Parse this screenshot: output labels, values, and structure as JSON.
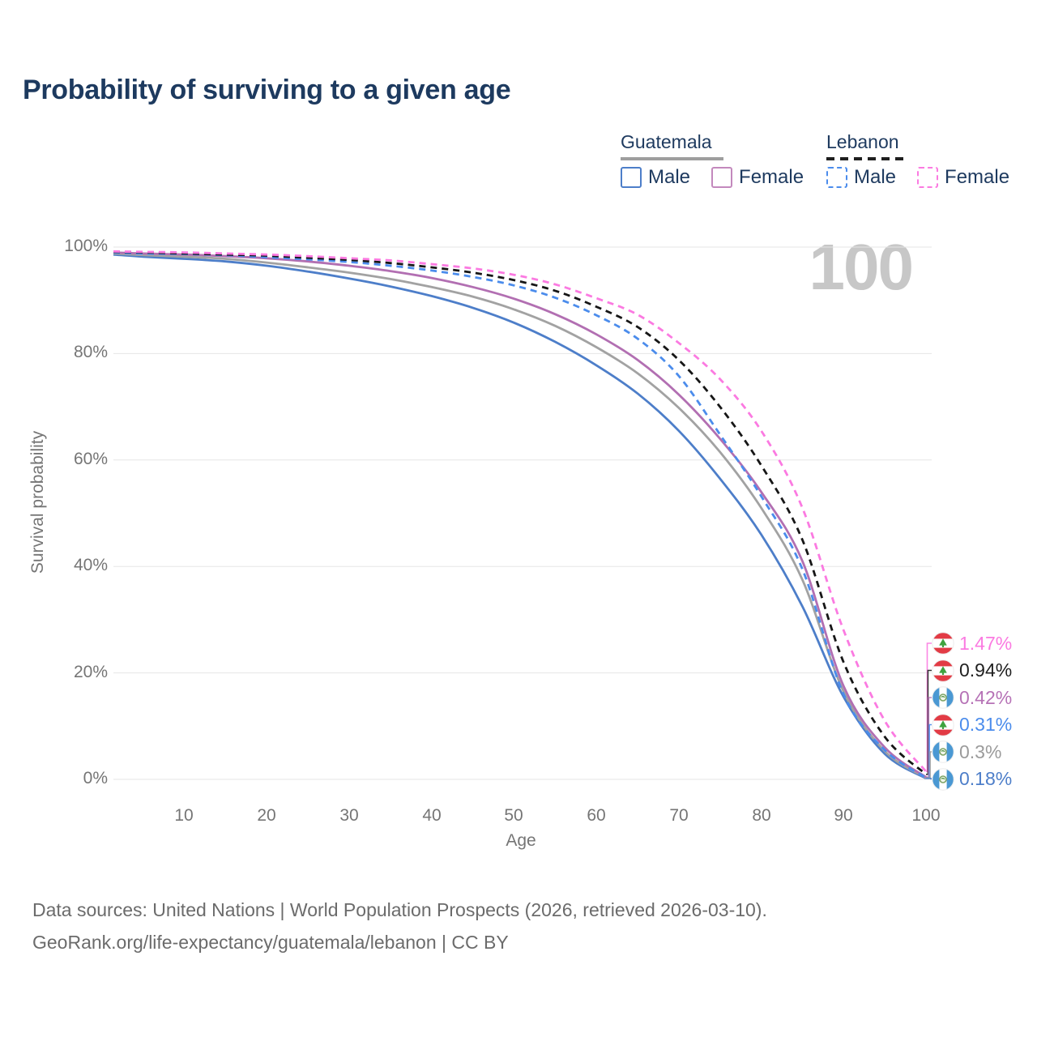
{
  "title": "Probability of surviving to a given age",
  "watermark": "100",
  "legend": {
    "guatemala": {
      "label": "Guatemala",
      "underline_color": "#9e9e9e",
      "male_label": "Male",
      "female_label": "Female",
      "male_color": "#4d7ec9",
      "female_color": "#c389bd"
    },
    "lebanon": {
      "label": "Lebanon",
      "underline_color": "#1f1f1f",
      "male_label": "Male",
      "female_label": "Female",
      "male_color": "#4b8cec",
      "female_color": "#fb7ae1"
    }
  },
  "axes": {
    "y_title": "Survival probability",
    "x_title": "Age",
    "y_ticks": [
      "100%",
      "80%",
      "60%",
      "40%",
      "20%",
      "0%"
    ],
    "y_tick_values": [
      100,
      80,
      60,
      40,
      20,
      0
    ],
    "x_ticks": [
      "10",
      "20",
      "30",
      "40",
      "50",
      "60",
      "70",
      "80",
      "90",
      "100"
    ],
    "x_tick_values": [
      10,
      20,
      30,
      40,
      50,
      60,
      70,
      80,
      90,
      100
    ]
  },
  "chart_data": {
    "type": "line",
    "title": "Probability of surviving to a given age",
    "xlabel": "Age",
    "ylabel": "Survival probability",
    "xlim": [
      0,
      100
    ],
    "ylim": [
      0,
      100
    ],
    "grid": true,
    "x": [
      0,
      5,
      10,
      15,
      20,
      25,
      30,
      35,
      40,
      45,
      50,
      55,
      60,
      65,
      70,
      75,
      80,
      85,
      90,
      95,
      100
    ],
    "series": [
      {
        "name": "Guatemala Male",
        "country": "Guatemala",
        "sex": "Male",
        "color": "#4d7ec9",
        "dash": false,
        "values": [
          98.6,
          98.2,
          97.8,
          97.3,
          96.5,
          95.4,
          94.1,
          92.6,
          90.8,
          88.6,
          85.8,
          82.2,
          77.8,
          72.5,
          65.5,
          56.5,
          46.0,
          32.5,
          15.5,
          4.8,
          0.18
        ]
      },
      {
        "name": "Guatemala (both sexes)",
        "country": "Guatemala",
        "sex": "Both",
        "color": "#a2a2a2",
        "dash": false,
        "values": [
          98.8,
          98.5,
          98.2,
          97.8,
          97.1,
          96.2,
          95.2,
          94.0,
          92.5,
          90.7,
          88.3,
          85.2,
          81.2,
          76.3,
          69.8,
          61.5,
          51.0,
          37.5,
          16.5,
          5.3,
          0.3
        ]
      },
      {
        "name": "Guatemala Female",
        "country": "Guatemala",
        "sex": "Female",
        "color": "#b26fb2",
        "dash": false,
        "values": [
          99.0,
          98.8,
          98.6,
          98.3,
          97.9,
          97.3,
          96.5,
          95.5,
          94.2,
          92.5,
          90.3,
          87.4,
          83.6,
          78.8,
          72.3,
          64.0,
          54.0,
          41.0,
          17.5,
          6.0,
          0.42
        ]
      },
      {
        "name": "Lebanon Male",
        "country": "Lebanon",
        "sex": "Male",
        "color": "#4b8cec",
        "dash": true,
        "values": [
          99.0,
          98.8,
          98.7,
          98.5,
          98.1,
          97.7,
          97.2,
          96.5,
          95.6,
          94.4,
          92.8,
          90.5,
          87.2,
          82.8,
          75.8,
          64.8,
          53.2,
          39.5,
          16.0,
          5.5,
          0.31
        ]
      },
      {
        "name": "Lebanon (both sexes)",
        "country": "Lebanon",
        "sex": "Both",
        "color": "#161616",
        "dash": true,
        "values": [
          99.1,
          99.0,
          98.8,
          98.6,
          98.4,
          98.0,
          97.6,
          97.0,
          96.2,
          95.2,
          93.8,
          91.8,
          88.8,
          85.0,
          78.8,
          70.0,
          59.0,
          45.0,
          22.0,
          8.0,
          0.94
        ]
      },
      {
        "name": "Lebanon Female",
        "country": "Lebanon",
        "sex": "Female",
        "color": "#fb7ae1",
        "dash": true,
        "values": [
          99.2,
          99.1,
          99.0,
          98.8,
          98.6,
          98.3,
          97.9,
          97.5,
          96.8,
          96.0,
          94.8,
          93.0,
          90.4,
          87.3,
          82.0,
          75.2,
          65.5,
          51.0,
          28.0,
          11.0,
          1.47
        ]
      }
    ]
  },
  "end_labels": [
    {
      "value": "1.47%",
      "series": "Lebanon Female",
      "flag": "lebanon",
      "color": "#fb7ae1"
    },
    {
      "value": "0.94%",
      "series": "Lebanon (both sexes)",
      "flag": "lebanon",
      "color": "#1f1f1f"
    },
    {
      "value": "0.42%",
      "series": "Guatemala Female",
      "flag": "guatemala",
      "color": "#b672b6"
    },
    {
      "value": "0.31%",
      "series": "Lebanon Male",
      "flag": "lebanon",
      "color": "#4b8cec"
    },
    {
      "value": "0.3%",
      "series": "Guatemala (both sexes)",
      "flag": "guatemala",
      "color": "#9b9b9b"
    },
    {
      "value": "0.18%",
      "series": "Guatemala Male",
      "flag": "guatemala",
      "color": "#4d7ec9"
    }
  ],
  "footer": {
    "line1": "Data sources: United Nations | World Population Prospects (2026, retrieved 2026-03-10).",
    "line2": "GeoRank.org/life-expectancy/guatemala/lebanon | CC BY"
  }
}
